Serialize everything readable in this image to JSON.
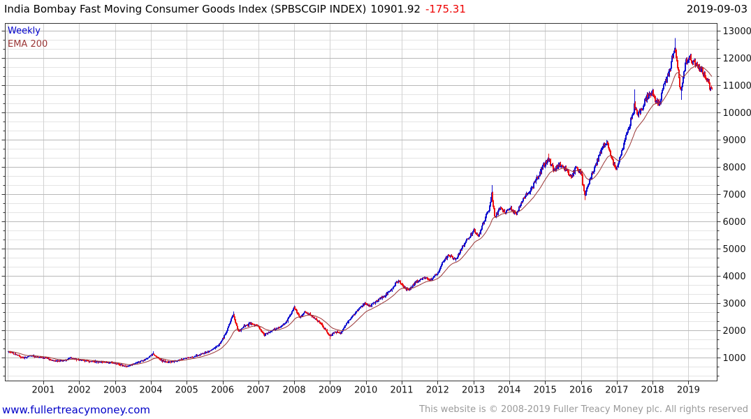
{
  "header": {
    "title": "India Bombay Fast Moving Consumer Goods Index (SPBSCGIP INDEX)",
    "last_value": "10901.92",
    "change": "-175.31",
    "date": "2019-09-03"
  },
  "legend": {
    "timeframe": "Weekly",
    "overlay": "EMA 200"
  },
  "footer": {
    "site_link": "www.fullertreacymoney.com",
    "copyright": "This website is © 2008-2019 Fuller Treacy Money plc. All rights reserved"
  },
  "colors": {
    "up_candle": "#1212d0",
    "down_candle": "#ee1111",
    "ema_line": "#9b3636",
    "change_text": "#ee0000",
    "link_text": "#0000c8",
    "copyright_text": "#9a9a9a",
    "grid_major": "#b8b8b8",
    "grid_minor": "#e4e4e4",
    "grid_vertical": "#d2d2d2",
    "axis_line": "#333333",
    "tick_label": "#111111",
    "legend_weekly": "#0000cc"
  },
  "chart_data": {
    "type": "candlestick",
    "title": "India Bombay Fast Moving Consumer Goods Index (SPBSCGIP INDEX)",
    "timeframe": "Weekly",
    "overlay": "EMA 200",
    "last_close": 10901.92,
    "change": -175.31,
    "as_of_date": "2019-09-03",
    "xlim": [
      1999.94,
      2019.8
    ],
    "ylim": [
      154,
      13270
    ],
    "x_ticks": [
      2001,
      2002,
      2003,
      2004,
      2005,
      2006,
      2007,
      2008,
      2009,
      2010,
      2011,
      2012,
      2013,
      2014,
      2015,
      2016,
      2017,
      2018,
      2019
    ],
    "x_grid_years": [
      2000,
      2001,
      2002,
      2003,
      2004,
      2005,
      2006,
      2007,
      2008,
      2009,
      2010,
      2011,
      2012,
      2013,
      2014,
      2015,
      2016,
      2017,
      2018,
      2019
    ],
    "y_ticks": [
      1000,
      2000,
      3000,
      4000,
      5000,
      6000,
      7000,
      8000,
      9000,
      10000,
      11000,
      12000,
      13000
    ],
    "y_minor_step": 333.333,
    "grid": true,
    "legend_position": "top-left",
    "series_keypoints": {
      "year": [
        2000.02,
        2000.2,
        2000.45,
        2000.65,
        2000.85,
        2001.05,
        2001.3,
        2001.55,
        2001.75,
        2002.0,
        2002.3,
        2002.6,
        2002.9,
        2003.2,
        2003.35,
        2003.6,
        2003.85,
        2004.05,
        2004.25,
        2004.45,
        2004.7,
        2004.95,
        2005.2,
        2005.45,
        2005.7,
        2005.9,
        2006.1,
        2006.3,
        2006.45,
        2006.6,
        2006.8,
        2007.0,
        2007.15,
        2007.35,
        2007.6,
        2007.8,
        2008.0,
        2008.15,
        2008.3,
        2008.5,
        2008.7,
        2008.85,
        2009.0,
        2009.15,
        2009.3,
        2009.45,
        2009.6,
        2009.8,
        2009.95,
        2010.1,
        2010.3,
        2010.5,
        2010.7,
        2010.9,
        2011.05,
        2011.2,
        2011.4,
        2011.6,
        2011.8,
        2012.0,
        2012.2,
        2012.35,
        2012.5,
        2012.7,
        2012.85,
        2013.0,
        2013.15,
        2013.3,
        2013.45,
        2013.52,
        2013.6,
        2013.75,
        2013.9,
        2014.05,
        2014.2,
        2014.35,
        2014.55,
        2014.75,
        2014.95,
        2015.1,
        2015.25,
        2015.4,
        2015.55,
        2015.7,
        2015.85,
        2016.0,
        2016.12,
        2016.3,
        2016.45,
        2016.6,
        2016.72,
        2016.85,
        2016.97,
        2017.1,
        2017.25,
        2017.4,
        2017.5,
        2017.58,
        2017.7,
        2017.85,
        2018.0,
        2018.1,
        2018.2,
        2018.3,
        2018.45,
        2018.55,
        2018.62,
        2018.68,
        2018.73,
        2018.78,
        2018.85,
        2018.95,
        2019.05,
        2019.15,
        2019.25,
        2019.35,
        2019.45,
        2019.55,
        2019.62,
        2019.665
      ],
      "close": [
        1230,
        1140,
        990,
        1090,
        1020,
        1000,
        880,
        900,
        1000,
        930,
        870,
        850,
        820,
        730,
        700,
        820,
        950,
        1150,
        930,
        830,
        900,
        980,
        1050,
        1160,
        1300,
        1500,
        1900,
        2600,
        1950,
        2150,
        2280,
        2150,
        1830,
        2000,
        2120,
        2350,
        2850,
        2480,
        2700,
        2520,
        2300,
        2050,
        1800,
        1950,
        1900,
        2250,
        2500,
        2800,
        3000,
        2900,
        3100,
        3250,
        3500,
        3850,
        3600,
        3500,
        3800,
        3950,
        3850,
        4100,
        4650,
        4750,
        4600,
        5100,
        5400,
        5650,
        5500,
        6000,
        6500,
        7000,
        6200,
        6500,
        6350,
        6500,
        6250,
        6800,
        7100,
        7500,
        8050,
        8300,
        7850,
        8150,
        7950,
        7600,
        7950,
        7800,
        6950,
        7700,
        8200,
        8750,
        8950,
        8350,
        7900,
        8400,
        9100,
        9800,
        10300,
        9900,
        10150,
        10600,
        10800,
        10400,
        10300,
        11050,
        11400,
        12100,
        12450,
        11900,
        11200,
        10750,
        11350,
        11900,
        12000,
        11900,
        11750,
        11600,
        11400,
        11150,
        10800,
        10901.92
      ]
    },
    "extremes": [
      {
        "year": 2003.35,
        "low": 660
      },
      {
        "year": 2004.05,
        "high": 1250
      },
      {
        "year": 2006.3,
        "high": 2700
      },
      {
        "year": 2008.0,
        "high": 2920
      },
      {
        "year": 2009.0,
        "low": 1680
      },
      {
        "year": 2013.52,
        "high": 7350
      },
      {
        "year": 2015.1,
        "high": 8500
      },
      {
        "year": 2016.12,
        "low": 6800
      },
      {
        "year": 2016.72,
        "high": 9000
      },
      {
        "year": 2017.5,
        "high": 10860
      },
      {
        "year": 2018.62,
        "high": 12750
      },
      {
        "year": 2018.78,
        "low": 10480
      }
    ]
  }
}
